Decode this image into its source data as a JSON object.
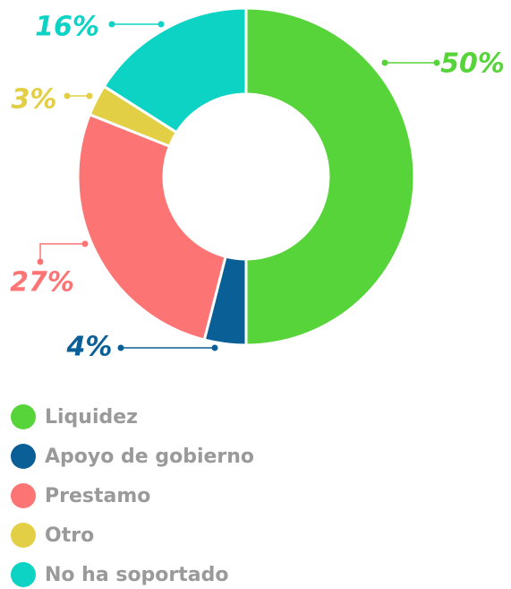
{
  "chart_data": {
    "type": "pie",
    "categories": [
      "Liquidez",
      "Apoyo de gobierno",
      "Prestamo",
      "Otro",
      "No ha soportado"
    ],
    "values": [
      50,
      4,
      27,
      3,
      16
    ],
    "value_labels": [
      "50%",
      "4%",
      "27%",
      "3%",
      "16%"
    ],
    "colors": [
      "#56d43a",
      "#0b5f97",
      "#fd7474",
      "#e3cf45",
      "#0dd3c5"
    ],
    "donut": true,
    "legend": "bottom"
  }
}
